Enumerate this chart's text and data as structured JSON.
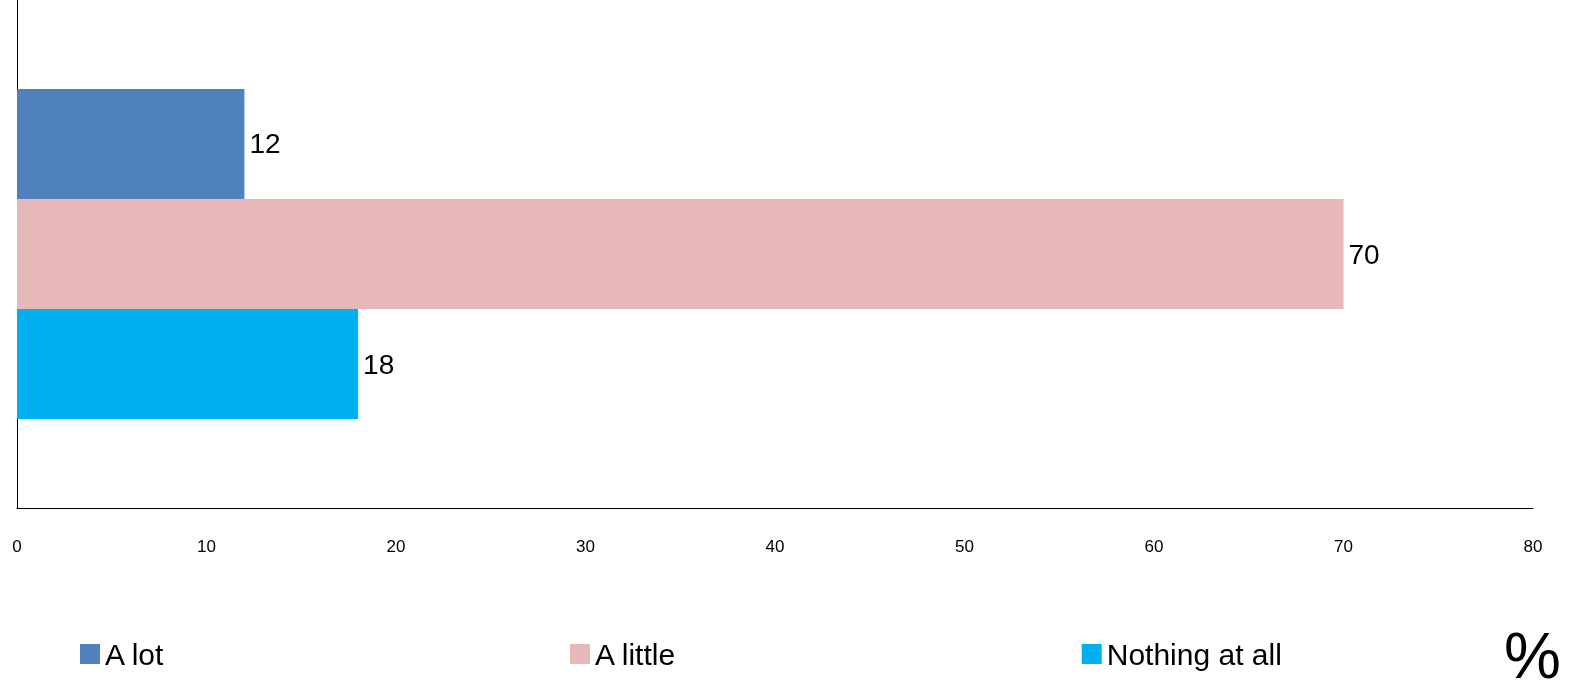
{
  "chart_data": {
    "type": "bar",
    "orientation": "horizontal",
    "categories": [
      null
    ],
    "series": [
      {
        "name": "A lot",
        "color": "#4f81bd",
        "values": [
          12
        ]
      },
      {
        "name": "A little",
        "color": "#e6b8b7",
        "values": [
          70
        ]
      },
      {
        "name": "Nothing at all",
        "color": "#00b0f0",
        "values": [
          18
        ]
      }
    ],
    "xlim": [
      0,
      80
    ],
    "xticks": [
      0,
      10,
      20,
      30,
      40,
      50,
      60,
      70,
      80
    ],
    "xlabel": "%",
    "data_labels": true,
    "grid": false,
    "legend": "bottom"
  }
}
